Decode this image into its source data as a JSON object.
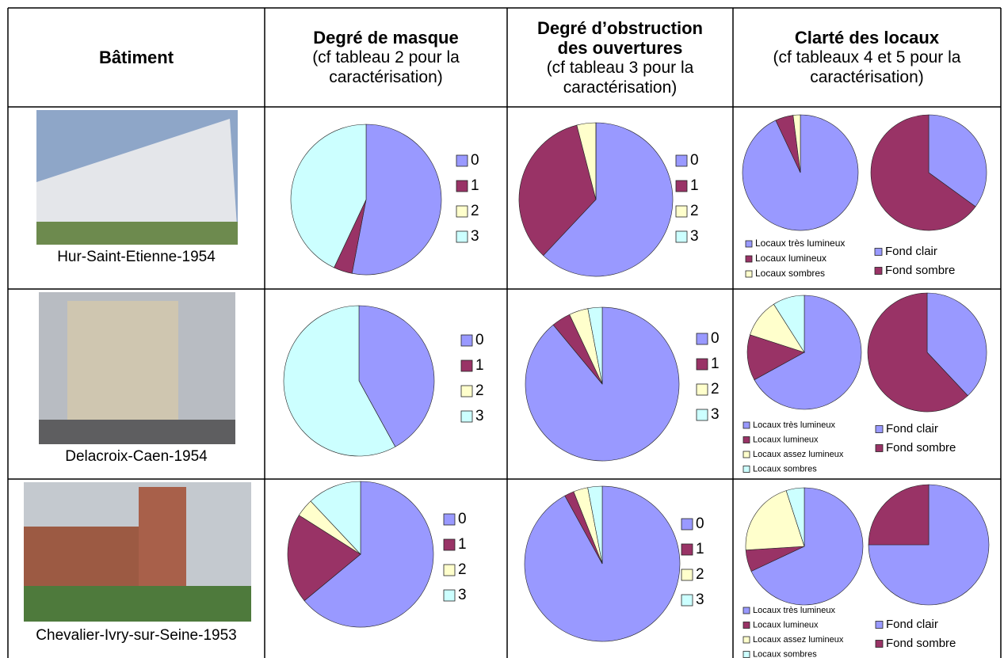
{
  "colors": [
    "#9999ff",
    "#993366",
    "#ffffcc",
    "#ccffff"
  ],
  "header": {
    "columns": [
      {
        "title": "Bâtiment"
      },
      {
        "title": "Degré de masque",
        "subtitle": "(cf tableau 2 pour la caractérisation)"
      },
      {
        "title": "Degré d’obstruction des ouvertures",
        "subtitle": "(cf tableau 3 pour la caractérisation)"
      },
      {
        "title": "Clarté des locaux",
        "subtitle": "(cf tableaux 4 et 5 pour la caractérisation)"
      }
    ]
  },
  "rows": [
    {
      "building": "Hur-Saint-Etienne-1954",
      "masque": {
        "labels": [
          "0",
          "1",
          "2",
          "3"
        ],
        "values": [
          53,
          4,
          0,
          43
        ]
      },
      "obstruction": {
        "labels": [
          "0",
          "1",
          "2",
          "3"
        ],
        "values": [
          62,
          34,
          4,
          0
        ]
      },
      "clarte_locaux": {
        "labels": [
          "Locaux très lumineux",
          "Locaux lumineux",
          "Locaux sombres"
        ],
        "values": [
          93,
          5,
          2
        ]
      },
      "clarte_fond": {
        "labels": [
          "Fond clair",
          "Fond sombre"
        ],
        "values": [
          35,
          65
        ]
      }
    },
    {
      "building": "Delacroix-Caen-1954",
      "masque": {
        "labels": [
          "0",
          "1",
          "2",
          "3"
        ],
        "values": [
          42,
          0,
          0,
          58
        ]
      },
      "obstruction": {
        "labels": [
          "0",
          "1",
          "2",
          "3"
        ],
        "values": [
          89,
          4,
          4,
          3
        ]
      },
      "clarte_locaux": {
        "labels": [
          "Locaux très lumineux",
          "Locaux lumineux",
          "Locaux assez lumineux",
          "Locaux sombres"
        ],
        "values": [
          67,
          13,
          11,
          9
        ]
      },
      "clarte_fond": {
        "labels": [
          "Fond clair",
          "Fond sombre"
        ],
        "values": [
          38,
          62
        ]
      }
    },
    {
      "building": "Chevalier-Ivry-sur-Seine-1953",
      "masque": {
        "labels": [
          "0",
          "1",
          "2",
          "3"
        ],
        "values": [
          64,
          20,
          4,
          12
        ]
      },
      "obstruction": {
        "labels": [
          "0",
          "1",
          "2",
          "3"
        ],
        "values": [
          92,
          2,
          3,
          3
        ]
      },
      "clarte_locaux": {
        "labels": [
          "Locaux très lumineux",
          "Locaux lumineux",
          "Locaux assez lumineux",
          "Locaux sombres"
        ],
        "values": [
          68,
          6,
          21,
          5
        ]
      },
      "clarte_fond": {
        "labels": [
          "Fond clair",
          "Fond sombre"
        ],
        "values": [
          75,
          25
        ]
      }
    }
  ]
}
